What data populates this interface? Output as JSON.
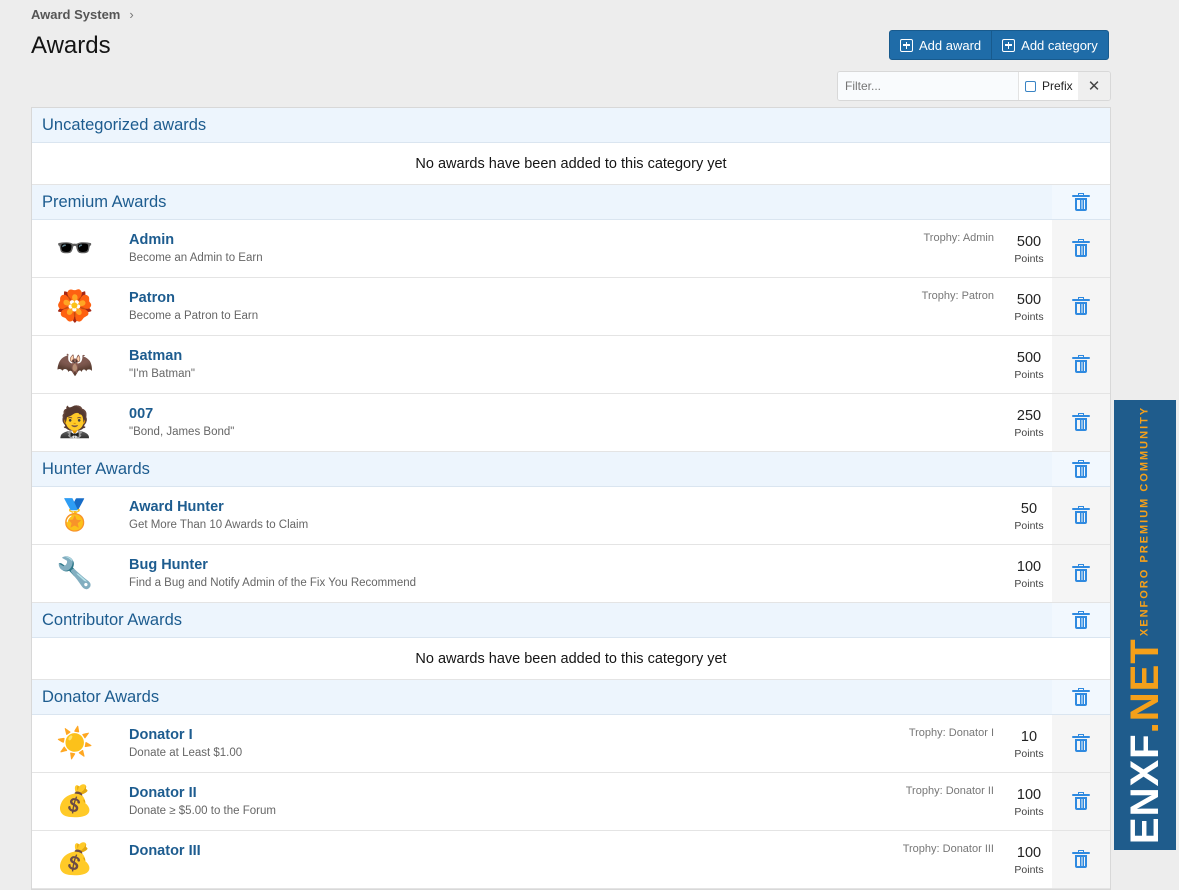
{
  "breadcrumb": {
    "label": "Award System",
    "sep": "›"
  },
  "page_title": "Awards",
  "toolbar": {
    "add_award": "Add award",
    "add_category": "Add category"
  },
  "filter": {
    "placeholder": "Filter...",
    "value": "",
    "prefix_label": "Prefix",
    "prefix_checked": false,
    "clear": "✕"
  },
  "empty_text": "No awards have been added to this category yet",
  "categories": [
    {
      "title": "Uncategorized awards",
      "awards": []
    },
    {
      "title": "Premium Awards",
      "awards": [
        {
          "name": "Admin",
          "desc": "Become an Admin to Earn",
          "trophy": "Trophy: Admin",
          "points": "500",
          "icon": "🕶️"
        },
        {
          "name": "Patron",
          "desc": "Become a Patron to Earn",
          "trophy": "Trophy: Patron",
          "points": "500",
          "icon": "🏵️"
        },
        {
          "name": "Batman",
          "desc": "\"I'm Batman\"",
          "trophy": "",
          "points": "500",
          "icon": "🦇"
        },
        {
          "name": "007",
          "desc": "\"Bond, James Bond\"",
          "trophy": "",
          "points": "250",
          "icon": "🤵"
        }
      ]
    },
    {
      "title": "Hunter Awards",
      "awards": [
        {
          "name": "Award Hunter",
          "desc": "Get More Than 10 Awards to Claim",
          "trophy": "",
          "points": "50",
          "icon": "🏅"
        },
        {
          "name": "Bug Hunter",
          "desc": "Find a Bug and Notify Admin of the Fix You Recommend",
          "trophy": "",
          "points": "100",
          "icon": "🔧"
        }
      ]
    },
    {
      "title": "Contributor Awards",
      "awards": []
    },
    {
      "title": "Donator Awards",
      "awards": [
        {
          "name": "Donator I",
          "desc": "Donate at Least $1.00",
          "trophy": "Trophy: Donator I",
          "points": "10",
          "icon": "☀️"
        },
        {
          "name": "Donator II",
          "desc": "Donate ≥ $5.00 to the Forum",
          "trophy": "Trophy: Donator II",
          "points": "100",
          "icon": "💰"
        },
        {
          "name": "Donator III",
          "desc": "",
          "trophy": "Trophy: Donator III",
          "points": "100",
          "icon": "💰"
        }
      ]
    }
  ],
  "points_label": "Points",
  "watermark": {
    "main": "ENXF",
    "accent": ".NET",
    "sub": "XENFORO PREMIUM COMMUNITY"
  }
}
